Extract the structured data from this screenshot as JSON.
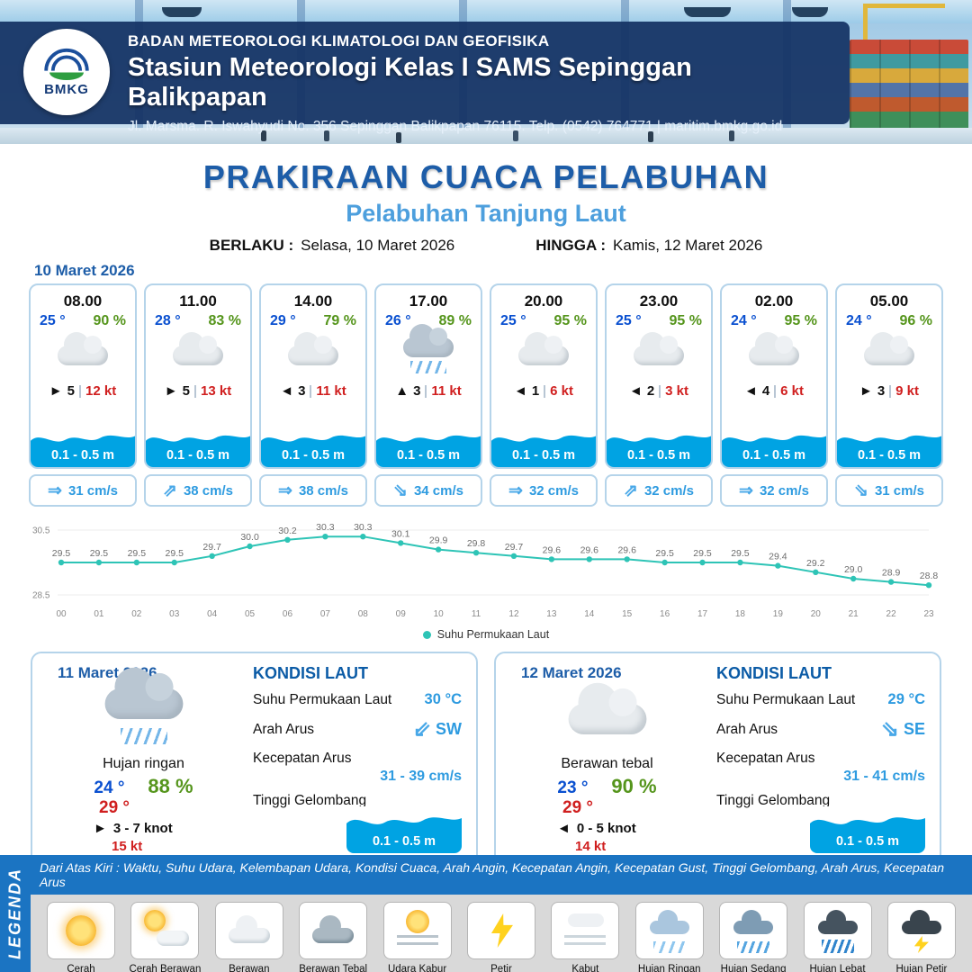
{
  "header": {
    "org": "BADAN METEOROLOGI KLIMATOLOGI DAN GEOFISIKA",
    "station": "Stasiun Meteorologi Kelas I SAMS Sepinggan Balikpapan",
    "address": "Jl. Marsma. R. Iswahyudi No. 356 Sepinggan Balikpapan 76115. Telp. (0542) 764771 | maritim.bmkg.go.id",
    "logo_text": "BMKG"
  },
  "title": {
    "main": "PRAKIRAAN CUACA PELABUHAN",
    "sub": "Pelabuhan Tanjung Laut",
    "valid_from_label": "BERLAKU :",
    "valid_from": "Selasa, 10 Maret 2026",
    "valid_to_label": "HINGGA :",
    "valid_to": "Kamis, 12 Maret 2026"
  },
  "colors": {
    "accent_blue": "#1d5da8",
    "light_blue": "#4d9fdd",
    "wave_blue": "#00a3e3",
    "humidity_green": "#55951c",
    "gust_red": "#d01f1f",
    "sst_line": "#2ec4b6"
  },
  "day1": {
    "date": "10 Maret 2026",
    "cards": [
      {
        "time": "08.00",
        "temp": "25 °",
        "rh": "90 %",
        "wind_arrow": "►",
        "wind": "5",
        "gust": "12 kt",
        "wave": "0.1 - 0.5 m",
        "cur_arrow": "⇒",
        "current": "31 cm/s",
        "icon": "cloud"
      },
      {
        "time": "11.00",
        "temp": "28 °",
        "rh": "83 %",
        "wind_arrow": "►",
        "wind": "5",
        "gust": "13 kt",
        "wave": "0.1 - 0.5 m",
        "cur_arrow": "⇗",
        "current": "38 cm/s",
        "icon": "cloud"
      },
      {
        "time": "14.00",
        "temp": "29 °",
        "rh": "79 %",
        "wind_arrow": "◄",
        "wind": "3",
        "gust": "11 kt",
        "wave": "0.1 - 0.5 m",
        "cur_arrow": "⇒",
        "current": "38 cm/s",
        "icon": "cloud"
      },
      {
        "time": "17.00",
        "temp": "26 °",
        "rh": "89 %",
        "wind_arrow": "▲",
        "wind": "3",
        "gust": "11 kt",
        "wave": "0.1 - 0.5 m",
        "cur_arrow": "⇘",
        "current": "34 cm/s",
        "icon": "rain"
      },
      {
        "time": "20.00",
        "temp": "25 °",
        "rh": "95 %",
        "wind_arrow": "◄",
        "wind": "1",
        "gust": "6 kt",
        "wave": "0.1 - 0.5 m",
        "cur_arrow": "⇒",
        "current": "32 cm/s",
        "icon": "cloud"
      },
      {
        "time": "23.00",
        "temp": "25 °",
        "rh": "95 %",
        "wind_arrow": "◄",
        "wind": "2",
        "gust": "3 kt",
        "wave": "0.1 - 0.5 m",
        "cur_arrow": "⇗",
        "current": "32 cm/s",
        "icon": "cloud"
      },
      {
        "time": "02.00",
        "temp": "24 °",
        "rh": "95 %",
        "wind_arrow": "◄",
        "wind": "4",
        "gust": "6 kt",
        "wave": "0.1 - 0.5 m",
        "cur_arrow": "⇒",
        "current": "32 cm/s",
        "icon": "cloud"
      },
      {
        "time": "05.00",
        "temp": "24 °",
        "rh": "96 %",
        "wind_arrow": "►",
        "wind": "3",
        "gust": "9 kt",
        "wave": "0.1 - 0.5 m",
        "cur_arrow": "⇘",
        "current": "31 cm/s",
        "icon": "cloud"
      }
    ]
  },
  "chart_data": {
    "type": "line",
    "title": "",
    "legend": "Suhu Permukaan Laut",
    "x": [
      "00",
      "01",
      "02",
      "03",
      "04",
      "05",
      "06",
      "07",
      "08",
      "09",
      "10",
      "11",
      "12",
      "13",
      "14",
      "15",
      "16",
      "17",
      "18",
      "19",
      "20",
      "21",
      "22",
      "23"
    ],
    "values": [
      29.5,
      29.5,
      29.5,
      29.5,
      29.7,
      30.0,
      30.2,
      30.3,
      30.3,
      30.1,
      29.9,
      29.8,
      29.7,
      29.6,
      29.6,
      29.6,
      29.5,
      29.5,
      29.5,
      29.4,
      29.2,
      29.0,
      28.9,
      28.8
    ],
    "ylim": [
      28.5,
      30.5
    ],
    "y_ticks": [
      28.5,
      30.5
    ],
    "grid": true,
    "legend_position": "bottom",
    "line_color": "#2ec4b6"
  },
  "day2": {
    "date": "11 Maret 2026",
    "condition": "Hujan ringan",
    "icon": "rain",
    "temp_min": "24 °",
    "rh": "88 %",
    "temp_max": "29 °",
    "wind_arrow": "►",
    "wind": "3  - 7 knot",
    "gust": "15 kt",
    "sea": {
      "title": "KONDISI LAUT",
      "sst_label": "Suhu Permukaan Laut",
      "sst": "30 °C",
      "dir_label": "Arah Arus",
      "dir_arrow": "⇙",
      "dir": "SW",
      "speed_label": "Kecepatan Arus",
      "speed": "31  - 39 cm/s",
      "wave_label": "Tinggi Gelombang",
      "wave": "0.1 - 0.5 m"
    }
  },
  "day3": {
    "date": "12 Maret 2026",
    "condition": "Berawan tebal",
    "icon": "cloud",
    "temp_min": "23 °",
    "rh": "90 %",
    "temp_max": "29 °",
    "wind_arrow": "◄",
    "wind": "0  - 5 knot",
    "gust": "14 kt",
    "sea": {
      "title": "KONDISI LAUT",
      "sst_label": "Suhu Permukaan Laut",
      "sst": "29 °C",
      "dir_label": "Arah Arus",
      "dir_arrow": "⇘",
      "dir": "SE",
      "speed_label": "Kecepatan Arus",
      "speed": "31  - 41 cm/s",
      "wave_label": "Tinggi Gelombang",
      "wave": "0.1 - 0.5 m"
    }
  },
  "legend": {
    "title": "LEGENDA",
    "description": "Dari Atas Kiri : Waktu, Suhu Udara, Kelembapan Udara, Kondisi Cuaca, Arah Angin, Kecepatan Angin, Kecepatan Gust, Tinggi Gelombang, Arah Arus, Kecepatan Arus",
    "items": [
      {
        "label": "Cerah",
        "icon": "sun"
      },
      {
        "label": "Cerah Berawan",
        "icon": "sun-cloud"
      },
      {
        "label": "Berawan",
        "icon": "cloud"
      },
      {
        "label": "Berawan Tebal",
        "icon": "cloud-dark"
      },
      {
        "label": "Udara Kabur",
        "icon": "haze"
      },
      {
        "label": "Petir",
        "icon": "lightning"
      },
      {
        "label": "Kabut",
        "icon": "fog"
      },
      {
        "label": "Hujan Ringan",
        "icon": "rain-light"
      },
      {
        "label": "Hujan Sedang",
        "icon": "rain-medium"
      },
      {
        "label": "Hujan Lebat",
        "icon": "rain-heavy"
      },
      {
        "label": "Hujan Petir",
        "icon": "rain-thunder"
      }
    ]
  }
}
